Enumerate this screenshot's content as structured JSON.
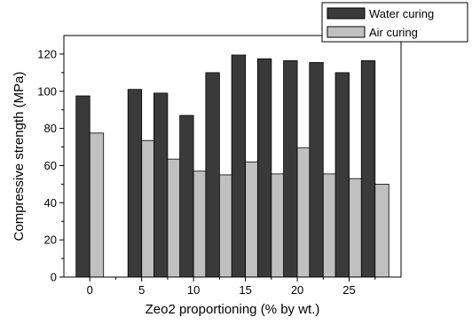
{
  "chart_data": {
    "type": "bar",
    "xlabel": "Zeo2 proportioning (% by wt.)",
    "ylabel": "Compressive strength (MPa)",
    "x": [
      0,
      2.5,
      5,
      7.5,
      10,
      12.5,
      15,
      17.5,
      20,
      22.5,
      25,
      27.5
    ],
    "xlim": [
      -2.5,
      30
    ],
    "xticks": [
      0,
      5,
      10,
      15,
      20,
      25
    ],
    "xtick_labels": [
      "0",
      "5",
      "10",
      "15",
      "20",
      "25"
    ],
    "ylim": [
      0,
      130
    ],
    "yticks": [
      0,
      20,
      40,
      60,
      80,
      100,
      120
    ],
    "ytick_labels": [
      "0",
      "20",
      "40",
      "60",
      "80",
      "100",
      "120"
    ],
    "grid": false,
    "legend_position": "top-right, outside plot area",
    "series": [
      {
        "name": "Water curing",
        "color": "#3a3a3a",
        "values": [
          97.5,
          null,
          101,
          99,
          87,
          110,
          119.5,
          117.5,
          116.5,
          115.5,
          110,
          116.5
        ]
      },
      {
        "name": "Air curing",
        "color": "#c0c0c0",
        "values": [
          77.5,
          null,
          73.5,
          63.5,
          57,
          55,
          62,
          55.5,
          69.5,
          55.5,
          53,
          50
        ]
      }
    ]
  }
}
